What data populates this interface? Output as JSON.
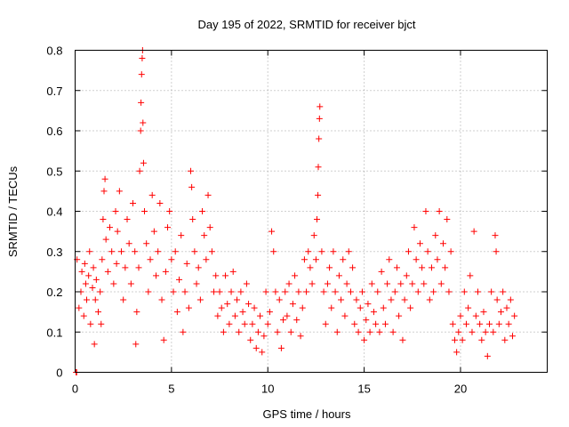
{
  "chart_data": {
    "type": "scatter",
    "title": "Day 195 of 2022, SRMTID for receiver bjct",
    "xlabel": "GPS time / hours",
    "ylabel": "SRMTID / TECUs",
    "xlim": [
      0,
      24.5
    ],
    "ylim": [
      0,
      0.8
    ],
    "x_ticks": [
      0,
      5,
      10,
      15,
      20
    ],
    "x_tick_labels": [
      "0",
      "5",
      "10",
      "15",
      "20"
    ],
    "y_ticks": [
      0,
      0.1,
      0.2,
      0.3,
      0.4,
      0.5,
      0.6,
      0.7,
      0.8
    ],
    "y_tick_labels": [
      "0",
      "0.1",
      "0.2",
      "0.3",
      "0.4",
      "0.5",
      "0.6",
      "0.7",
      "0.8"
    ],
    "grid": true,
    "marker": "+",
    "color": "#ff0000",
    "series": [
      {
        "name": "SRMTID",
        "points": [
          [
            0.05,
            0.0
          ],
          [
            0.08,
            0.0
          ],
          [
            0.1,
            0.28
          ],
          [
            0.2,
            0.16
          ],
          [
            0.3,
            0.2
          ],
          [
            0.35,
            0.25
          ],
          [
            0.45,
            0.14
          ],
          [
            0.5,
            0.27
          ],
          [
            0.55,
            0.22
          ],
          [
            0.6,
            0.18
          ],
          [
            0.7,
            0.24
          ],
          [
            0.75,
            0.3
          ],
          [
            0.8,
            0.12
          ],
          [
            0.9,
            0.21
          ],
          [
            0.95,
            0.26
          ],
          [
            1.0,
            0.07
          ],
          [
            1.05,
            0.18
          ],
          [
            1.1,
            0.23
          ],
          [
            1.2,
            0.15
          ],
          [
            1.3,
            0.2
          ],
          [
            1.35,
            0.12
          ],
          [
            1.4,
            0.28
          ],
          [
            1.45,
            0.38
          ],
          [
            1.5,
            0.45
          ],
          [
            1.55,
            0.48
          ],
          [
            1.6,
            0.33
          ],
          [
            1.7,
            0.25
          ],
          [
            1.8,
            0.36
          ],
          [
            1.9,
            0.3
          ],
          [
            2.0,
            0.22
          ],
          [
            2.1,
            0.4
          ],
          [
            2.15,
            0.27
          ],
          [
            2.2,
            0.35
          ],
          [
            2.3,
            0.45
          ],
          [
            2.4,
            0.3
          ],
          [
            2.5,
            0.18
          ],
          [
            2.6,
            0.26
          ],
          [
            2.7,
            0.38
          ],
          [
            2.8,
            0.32
          ],
          [
            2.9,
            0.22
          ],
          [
            3.0,
            0.42
          ],
          [
            3.1,
            0.3
          ],
          [
            3.15,
            0.07
          ],
          [
            3.2,
            0.15
          ],
          [
            3.3,
            0.26
          ],
          [
            3.35,
            0.5
          ],
          [
            3.4,
            0.6
          ],
          [
            3.42,
            0.67
          ],
          [
            3.45,
            0.74
          ],
          [
            3.48,
            0.78
          ],
          [
            3.5,
            0.8
          ],
          [
            3.52,
            0.62
          ],
          [
            3.55,
            0.52
          ],
          [
            3.6,
            0.4
          ],
          [
            3.7,
            0.32
          ],
          [
            3.8,
            0.2
          ],
          [
            3.9,
            0.28
          ],
          [
            4.0,
            0.44
          ],
          [
            4.1,
            0.35
          ],
          [
            4.2,
            0.24
          ],
          [
            4.3,
            0.3
          ],
          [
            4.4,
            0.42
          ],
          [
            4.5,
            0.18
          ],
          [
            4.6,
            0.08
          ],
          [
            4.7,
            0.25
          ],
          [
            4.8,
            0.36
          ],
          [
            4.9,
            0.4
          ],
          [
            5.0,
            0.28
          ],
          [
            5.1,
            0.2
          ],
          [
            5.2,
            0.3
          ],
          [
            5.3,
            0.15
          ],
          [
            5.4,
            0.23
          ],
          [
            5.5,
            0.34
          ],
          [
            5.6,
            0.1
          ],
          [
            5.7,
            0.2
          ],
          [
            5.8,
            0.27
          ],
          [
            5.9,
            0.16
          ],
          [
            6.0,
            0.5
          ],
          [
            6.05,
            0.46
          ],
          [
            6.1,
            0.38
          ],
          [
            6.2,
            0.3
          ],
          [
            6.3,
            0.22
          ],
          [
            6.4,
            0.26
          ],
          [
            6.5,
            0.18
          ],
          [
            6.6,
            0.4
          ],
          [
            6.7,
            0.34
          ],
          [
            6.8,
            0.28
          ],
          [
            6.9,
            0.44
          ],
          [
            7.0,
            0.36
          ],
          [
            7.1,
            0.3
          ],
          [
            7.2,
            0.2
          ],
          [
            7.3,
            0.24
          ],
          [
            7.4,
            0.14
          ],
          [
            7.5,
            0.2
          ],
          [
            7.6,
            0.16
          ],
          [
            7.7,
            0.1
          ],
          [
            7.8,
            0.24
          ],
          [
            7.9,
            0.17
          ],
          [
            8.0,
            0.12
          ],
          [
            8.1,
            0.2
          ],
          [
            8.2,
            0.25
          ],
          [
            8.3,
            0.14
          ],
          [
            8.4,
            0.18
          ],
          [
            8.5,
            0.1
          ],
          [
            8.6,
            0.2
          ],
          [
            8.7,
            0.15
          ],
          [
            8.8,
            0.12
          ],
          [
            8.9,
            0.22
          ],
          [
            9.0,
            0.17
          ],
          [
            9.1,
            0.08
          ],
          [
            9.2,
            0.12
          ],
          [
            9.3,
            0.16
          ],
          [
            9.4,
            0.06
          ],
          [
            9.5,
            0.1
          ],
          [
            9.6,
            0.14
          ],
          [
            9.7,
            0.05
          ],
          [
            9.8,
            0.09
          ],
          [
            9.9,
            0.2
          ],
          [
            10.0,
            0.12
          ],
          [
            10.1,
            0.15
          ],
          [
            10.2,
            0.35
          ],
          [
            10.3,
            0.3
          ],
          [
            10.4,
            0.2
          ],
          [
            10.5,
            0.1
          ],
          [
            10.6,
            0.18
          ],
          [
            10.7,
            0.06
          ],
          [
            10.8,
            0.13
          ],
          [
            10.9,
            0.2
          ],
          [
            11.0,
            0.14
          ],
          [
            11.1,
            0.22
          ],
          [
            11.2,
            0.1
          ],
          [
            11.3,
            0.17
          ],
          [
            11.4,
            0.24
          ],
          [
            11.5,
            0.13
          ],
          [
            11.6,
            0.2
          ],
          [
            11.7,
            0.09
          ],
          [
            11.8,
            0.16
          ],
          [
            11.9,
            0.28
          ],
          [
            12.0,
            0.2
          ],
          [
            12.1,
            0.3
          ],
          [
            12.2,
            0.26
          ],
          [
            12.3,
            0.22
          ],
          [
            12.4,
            0.34
          ],
          [
            12.5,
            0.28
          ],
          [
            12.55,
            0.38
          ],
          [
            12.6,
            0.44
          ],
          [
            12.62,
            0.51
          ],
          [
            12.65,
            0.58
          ],
          [
            12.68,
            0.63
          ],
          [
            12.7,
            0.66
          ],
          [
            12.8,
            0.3
          ],
          [
            12.9,
            0.2
          ],
          [
            13.0,
            0.12
          ],
          [
            13.1,
            0.22
          ],
          [
            13.2,
            0.26
          ],
          [
            13.3,
            0.16
          ],
          [
            13.4,
            0.3
          ],
          [
            13.5,
            0.2
          ],
          [
            13.6,
            0.1
          ],
          [
            13.7,
            0.24
          ],
          [
            13.8,
            0.18
          ],
          [
            13.9,
            0.28
          ],
          [
            14.0,
            0.14
          ],
          [
            14.1,
            0.22
          ],
          [
            14.2,
            0.3
          ],
          [
            14.3,
            0.2
          ],
          [
            14.4,
            0.26
          ],
          [
            14.5,
            0.12
          ],
          [
            14.6,
            0.18
          ],
          [
            14.7,
            0.1
          ],
          [
            14.8,
            0.16
          ],
          [
            14.9,
            0.2
          ],
          [
            15.0,
            0.08
          ],
          [
            15.1,
            0.13
          ],
          [
            15.2,
            0.17
          ],
          [
            15.3,
            0.1
          ],
          [
            15.4,
            0.22
          ],
          [
            15.5,
            0.15
          ],
          [
            15.6,
            0.12
          ],
          [
            15.7,
            0.2
          ],
          [
            15.8,
            0.1
          ],
          [
            15.9,
            0.25
          ],
          [
            16.0,
            0.16
          ],
          [
            16.1,
            0.12
          ],
          [
            16.2,
            0.22
          ],
          [
            16.3,
            0.28
          ],
          [
            16.4,
            0.18
          ],
          [
            16.5,
            0.1
          ],
          [
            16.6,
            0.2
          ],
          [
            16.7,
            0.26
          ],
          [
            16.8,
            0.14
          ],
          [
            16.9,
            0.22
          ],
          [
            17.0,
            0.08
          ],
          [
            17.1,
            0.18
          ],
          [
            17.2,
            0.24
          ],
          [
            17.3,
            0.3
          ],
          [
            17.4,
            0.16
          ],
          [
            17.5,
            0.22
          ],
          [
            17.6,
            0.36
          ],
          [
            17.7,
            0.28
          ],
          [
            17.8,
            0.2
          ],
          [
            17.9,
            0.32
          ],
          [
            18.0,
            0.26
          ],
          [
            18.1,
            0.22
          ],
          [
            18.2,
            0.4
          ],
          [
            18.3,
            0.3
          ],
          [
            18.4,
            0.18
          ],
          [
            18.5,
            0.26
          ],
          [
            18.6,
            0.2
          ],
          [
            18.7,
            0.34
          ],
          [
            18.8,
            0.28
          ],
          [
            18.9,
            0.4
          ],
          [
            19.0,
            0.22
          ],
          [
            19.1,
            0.32
          ],
          [
            19.2,
            0.26
          ],
          [
            19.3,
            0.38
          ],
          [
            19.4,
            0.2
          ],
          [
            19.5,
            0.3
          ],
          [
            19.6,
            0.12
          ],
          [
            19.7,
            0.08
          ],
          [
            19.8,
            0.05
          ],
          [
            19.9,
            0.1
          ],
          [
            20.0,
            0.14
          ],
          [
            20.1,
            0.08
          ],
          [
            20.2,
            0.2
          ],
          [
            20.3,
            0.12
          ],
          [
            20.4,
            0.16
          ],
          [
            20.5,
            0.24
          ],
          [
            20.6,
            0.1
          ],
          [
            20.7,
            0.35
          ],
          [
            20.8,
            0.14
          ],
          [
            20.9,
            0.2
          ],
          [
            21.0,
            0.12
          ],
          [
            21.1,
            0.08
          ],
          [
            21.2,
            0.15
          ],
          [
            21.3,
            0.1
          ],
          [
            21.4,
            0.04
          ],
          [
            21.5,
            0.12
          ],
          [
            21.6,
            0.2
          ],
          [
            21.7,
            0.1
          ],
          [
            21.8,
            0.34
          ],
          [
            21.85,
            0.3
          ],
          [
            21.9,
            0.18
          ],
          [
            22.0,
            0.12
          ],
          [
            22.1,
            0.15
          ],
          [
            22.2,
            0.2
          ],
          [
            22.3,
            0.08
          ],
          [
            22.4,
            0.16
          ],
          [
            22.5,
            0.12
          ],
          [
            22.6,
            0.18
          ],
          [
            22.7,
            0.09
          ],
          [
            22.8,
            0.14
          ]
        ]
      }
    ]
  }
}
